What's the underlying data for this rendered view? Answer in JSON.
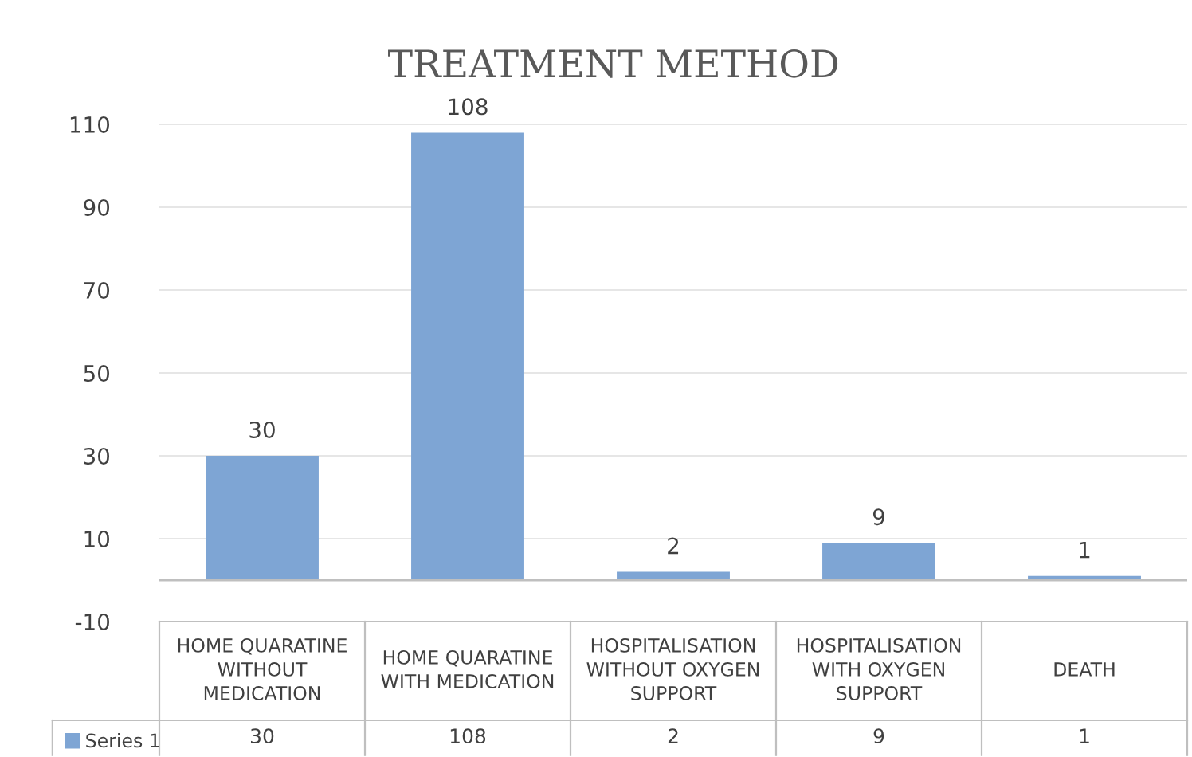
{
  "chart_data": {
    "type": "bar",
    "title": "TREATMENT METHOD",
    "categories": [
      "HOME QUARATINE WITHOUT MEDICATION",
      "HOME QUARATINE WITH MEDICATION",
      "HOSPITALISATION WITHOUT OXYGEN SUPPORT",
      "HOSPITALISATION WITH OXYGEN SUPPORT",
      "DEATH"
    ],
    "series": [
      {
        "name": "Series 1",
        "color": "#7ea5d4",
        "values": [
          30,
          108,
          2,
          9,
          1
        ],
        "value_labels": [
          "30",
          "108",
          "2",
          "9",
          "1"
        ]
      }
    ],
    "ylim": [
      -10,
      110
    ],
    "yticks": [
      -10,
      10,
      30,
      50,
      70,
      90,
      110
    ],
    "annotations": [
      "30",
      "108",
      "2",
      "9",
      "1"
    ],
    "grid": "y",
    "legend": "bottom left"
  }
}
